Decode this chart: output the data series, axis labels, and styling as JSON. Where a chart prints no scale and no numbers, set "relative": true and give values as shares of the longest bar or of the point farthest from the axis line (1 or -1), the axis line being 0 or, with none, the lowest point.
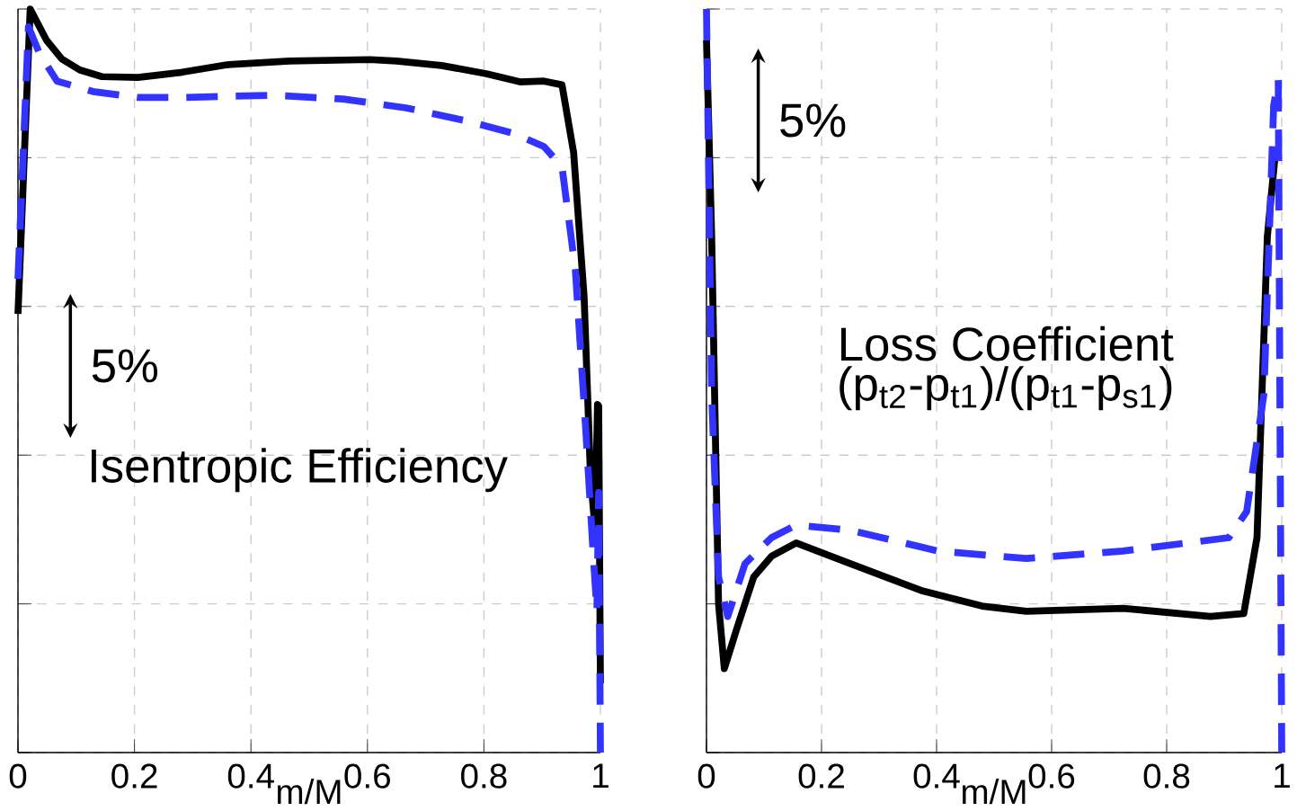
{
  "chart_data": [
    {
      "type": "line",
      "relative": true,
      "xlabel": "m/M",
      "xlim": [
        0,
        1
      ],
      "xticks": [
        0,
        0.2,
        0.4,
        0.6,
        0.8,
        1
      ],
      "grid": true,
      "annotations": [
        "5%",
        "Isentropic Efficiency"
      ],
      "series": [
        {
          "color": "#000000",
          "line_style": "solid",
          "x": [
            0,
            0.021,
            0.049,
            0.075,
            0.106,
            0.144,
            0.206,
            0.282,
            0.359,
            0.466,
            0.604,
            0.65,
            0.727,
            0.804,
            0.862,
            0.903,
            0.934,
            0.954,
            0.972,
            0.983,
            0.991,
            0.995,
            0.997,
            1.0
          ],
          "values": [
            0.59,
            1.0,
            0.958,
            0.933,
            0.918,
            0.909,
            0.908,
            0.915,
            0.925,
            0.93,
            0.932,
            0.93,
            0.924,
            0.913,
            0.902,
            0.903,
            0.898,
            0.807,
            0.613,
            0.371,
            0.299,
            0.468,
            0.466,
            0.093
          ]
        },
        {
          "color": "#3333ff",
          "line_style": "dashed",
          "x": [
            0,
            0.018,
            0.037,
            0.067,
            0.129,
            0.206,
            0.282,
            0.436,
            0.558,
            0.666,
            0.773,
            0.85,
            0.903,
            0.934,
            0.957,
            0.975,
            0.988,
            0.994,
            0.997,
            1.0
          ],
          "values": [
            0.637,
            0.976,
            0.94,
            0.903,
            0.889,
            0.881,
            0.881,
            0.884,
            0.879,
            0.867,
            0.849,
            0.833,
            0.815,
            0.788,
            0.649,
            0.432,
            0.262,
            0.19,
            0.35,
            0.0
          ]
        }
      ]
    },
    {
      "type": "line",
      "relative": true,
      "xlabel": "m/M",
      "xlim": [
        0,
        1
      ],
      "xticks": [
        0,
        0.2,
        0.4,
        0.6,
        0.8,
        1
      ],
      "grid": true,
      "annotations": [
        "5%",
        "Loss Coefficient",
        "(p$_{t2}$-p$_{t1}$)/(p$_{t1}$-p$_{s1}$)"
      ],
      "series": [
        {
          "color": "#000000",
          "line_style": "solid",
          "x": [
            0,
            0.009,
            0.021,
            0.031,
            0.052,
            0.082,
            0.113,
            0.156,
            0.25,
            0.373,
            0.479,
            0.556,
            0.724,
            0.876,
            0.934,
            0.957,
            0.975,
            0.988
          ],
          "values": [
            0.958,
            0.694,
            0.2,
            0.113,
            0.165,
            0.236,
            0.264,
            0.282,
            0.254,
            0.218,
            0.197,
            0.19,
            0.194,
            0.183,
            0.187,
            0.289,
            0.694,
            0.799
          ]
        },
        {
          "color": "#3333ff",
          "line_style": "dashed",
          "x": [
            0,
            0.009,
            0.021,
            0.037,
            0.067,
            0.113,
            0.156,
            0.25,
            0.403,
            0.556,
            0.724,
            0.908,
            0.939,
            0.969,
            0.986,
            0.994,
            1.0
          ],
          "values": [
            1.0,
            0.482,
            0.236,
            0.183,
            0.254,
            0.289,
            0.306,
            0.299,
            0.271,
            0.261,
            0.271,
            0.289,
            0.324,
            0.482,
            0.87,
            0.905,
            0.0
          ]
        }
      ]
    }
  ]
}
